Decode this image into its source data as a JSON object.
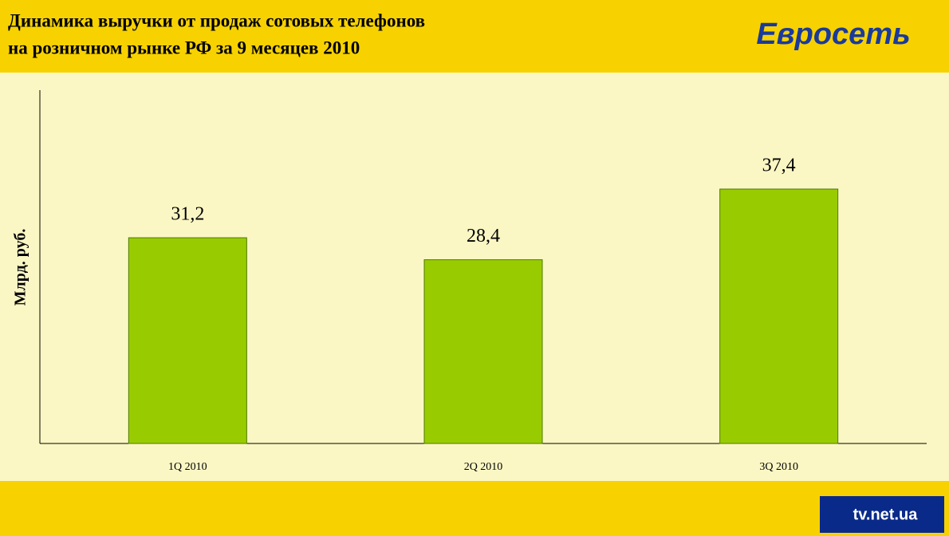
{
  "chart_data": {
    "type": "bar",
    "title": [
      "Динамика выручки от продаж сотовых телефонов",
      "на розничном рынке РФ за 9 месяцев 2010"
    ],
    "ylabel": "Млрд. руб.",
    "categories": [
      "1Q 2010",
      "2Q 2010",
      "3Q 2010"
    ],
    "values": [
      31.2,
      28.4,
      37.4
    ],
    "value_labels": [
      "31,2",
      "28,4",
      "37,4"
    ],
    "color": "#99cc00",
    "ylim": [
      5,
      50
    ],
    "logo": "Евросеть",
    "watermark": "tv.net.ua"
  }
}
